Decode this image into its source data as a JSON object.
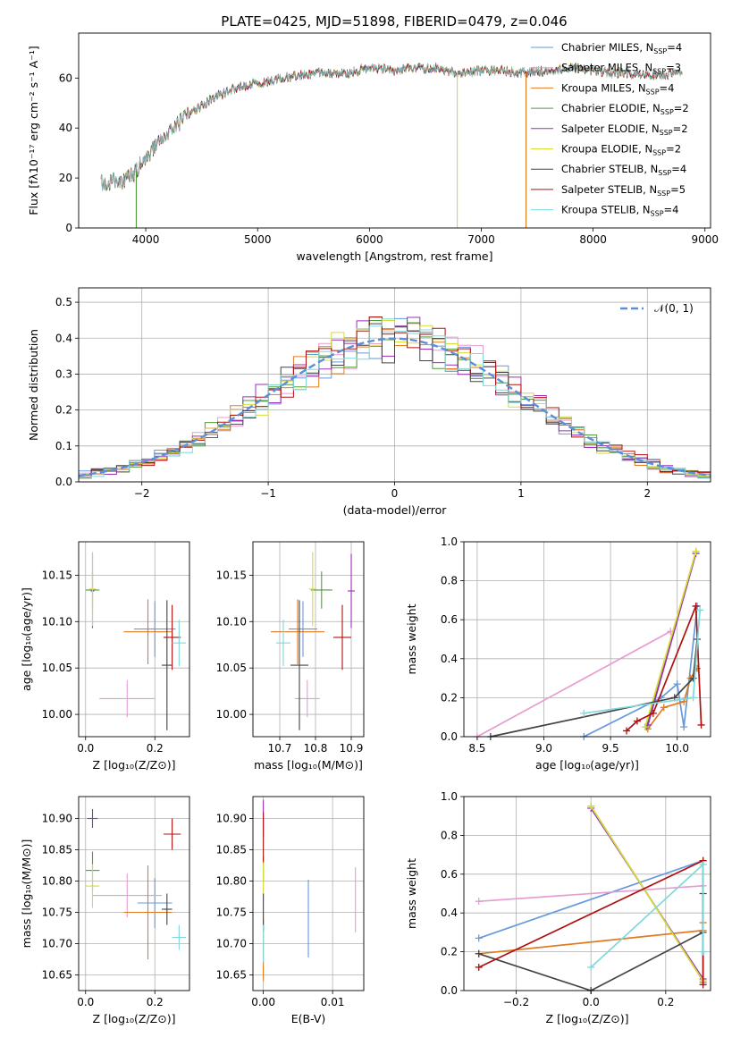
{
  "title": "PLATE=0425, MJD=51898, FIBERID=0479, z=0.046",
  "colors": {
    "chabrier_miles": "#6699dd",
    "salpeter_miles": "#e69cd0",
    "kroupa_miles": "#e07b1f",
    "chabrier_elodie": "#4d9e3a",
    "salpeter_elodie": "#9b30b6",
    "kroupa_elodie": "#d6dc38",
    "chabrier_stelib": "#444444",
    "salpeter_stelib": "#b01010",
    "kroupa_stelib": "#7fd8dc",
    "normal": "#5b8fd9"
  },
  "chart_data": [
    {
      "id": "spectrum",
      "type": "line",
      "xlabel": "wavelength [Angstrom, rest frame]",
      "ylabel": "Flux [fλ10⁻¹⁷ erg cm⁻² s⁻¹ A⁻¹]",
      "xlim": [
        3400,
        9050
      ],
      "ylim": [
        0,
        78
      ],
      "xticks": [
        4000,
        5000,
        6000,
        7000,
        8000,
        9000
      ],
      "yticks": [
        0,
        20,
        40,
        60
      ],
      "grid": false,
      "legend_position": "top-right",
      "legend": [
        {
          "key": "chabrier_miles",
          "label": "Chabrier MILES, N",
          "sub": "SSP",
          "eq": "=4"
        },
        {
          "key": "salpeter_miles",
          "label": "Salpeter MILES, N",
          "sub": "SSP",
          "eq": "=3"
        },
        {
          "key": "kroupa_miles",
          "label": "Kroupa MILES, N",
          "sub": "SSP",
          "eq": "=4"
        },
        {
          "key": "chabrier_elodie",
          "label": "Chabrier ELODIE, N",
          "sub": "SSP",
          "eq": "=2"
        },
        {
          "key": "salpeter_elodie",
          "label": "Salpeter ELODIE, N",
          "sub": "SSP",
          "eq": "=2"
        },
        {
          "key": "kroupa_elodie",
          "label": "Kroupa ELODIE, N",
          "sub": "SSP",
          "eq": "=2"
        },
        {
          "key": "chabrier_stelib",
          "label": "Chabrier STELIB, N",
          "sub": "SSP",
          "eq": "=4"
        },
        {
          "key": "salpeter_stelib",
          "label": "Salpeter STELIB, N",
          "sub": "SSP",
          "eq": "=5"
        },
        {
          "key": "kroupa_stelib",
          "label": "Kroupa STELIB, N",
          "sub": "SSP",
          "eq": "=4"
        }
      ],
      "continuum": [
        [
          3600,
          18
        ],
        [
          3800,
          19
        ],
        [
          3900,
          22
        ],
        [
          4000,
          28
        ],
        [
          4200,
          38
        ],
        [
          4400,
          46
        ],
        [
          4600,
          52
        ],
        [
          4800,
          56
        ],
        [
          5000,
          58
        ],
        [
          5200,
          60
        ],
        [
          5400,
          61
        ],
        [
          5600,
          62
        ],
        [
          5800,
          62
        ],
        [
          6000,
          64
        ],
        [
          6200,
          63
        ],
        [
          6400,
          64
        ],
        [
          6600,
          64
        ],
        [
          6800,
          62
        ],
        [
          7000,
          63
        ],
        [
          7200,
          63
        ],
        [
          7400,
          62
        ],
        [
          7600,
          63
        ],
        [
          7800,
          64
        ],
        [
          8000,
          63
        ],
        [
          8200,
          62
        ],
        [
          8400,
          62
        ],
        [
          8600,
          61
        ],
        [
          8800,
          62
        ]
      ],
      "drop_lines": [
        {
          "x": 3915,
          "color_key": "chabrier_elodie"
        },
        {
          "x": 6785,
          "color_key": "kroupa_elodie"
        },
        {
          "x": 7400,
          "color_key": "kroupa_miles"
        }
      ]
    },
    {
      "id": "residuals",
      "type": "step",
      "xlabel": "(data-model)/error",
      "ylabel": "Normed distribution",
      "xlim": [
        -2.5,
        2.5
      ],
      "ylim": [
        0,
        0.54
      ],
      "xticks": [
        -2,
        -1,
        0,
        1,
        2
      ],
      "yticks": [
        0.0,
        0.1,
        0.2,
        0.3,
        0.4,
        0.5
      ],
      "grid": true,
      "legend_position": "top-right",
      "legend_label": "𝒩(0, 1)",
      "bin_width": 0.1
    },
    {
      "id": "age_vs_Z",
      "type": "errorbar",
      "xlabel": "Z [log₁₀(Z/Z⊙)]",
      "ylabel": "age  [log₁₀(age/yr)]",
      "xlim": [
        -0.02,
        0.3
      ],
      "ylim": [
        9.976,
        10.186
      ],
      "xticks": [
        0.0,
        0.2
      ],
      "yticks": [
        10.0,
        10.05,
        10.1,
        10.15
      ],
      "points": [
        {
          "key": "chabrier_miles",
          "x": 0.2,
          "xerr": 0.06,
          "y": 10.092,
          "yerr": 0.03
        },
        {
          "key": "salpeter_miles",
          "x": 0.12,
          "xerr": 0.08,
          "y": 10.017,
          "yerr": 0.02
        },
        {
          "key": "kroupa_miles",
          "x": 0.18,
          "xerr": 0.07,
          "y": 10.089,
          "yerr": 0.035
        },
        {
          "key": "chabrier_elodie",
          "x": 0.02,
          "xerr": 0.02,
          "y": 10.134,
          "yerr": 0.02
        },
        {
          "key": "salpeter_elodie",
          "x": 0.02,
          "xerr": 0.005,
          "y": 10.133,
          "yerr": 0.04
        },
        {
          "key": "kroupa_elodie",
          "x": 0.02,
          "xerr": 0.01,
          "y": 10.135,
          "yerr": 0.04
        },
        {
          "key": "chabrier_stelib",
          "x": 0.235,
          "xerr": 0.015,
          "y": 10.053,
          "yerr": 0.07
        },
        {
          "key": "salpeter_stelib",
          "x": 0.25,
          "xerr": 0.025,
          "y": 10.083,
          "yerr": 0.035
        },
        {
          "key": "kroupa_stelib",
          "x": 0.27,
          "xerr": 0.02,
          "y": 10.077,
          "yerr": 0.025
        }
      ]
    },
    {
      "id": "age_vs_mass",
      "type": "errorbar",
      "xlabel": "mass [log₁₀(M/M⊙)]",
      "ylabel": "",
      "xlim": [
        10.625,
        10.935
      ],
      "ylim": [
        9.976,
        10.186
      ],
      "xticks": [
        10.7,
        10.8,
        10.9
      ],
      "yticks": [
        10.0,
        10.05,
        10.1,
        10.15
      ],
      "points": [
        {
          "key": "chabrier_miles",
          "x": 10.765,
          "xerr": 0.04,
          "y": 10.092,
          "yerr": 0.03
        },
        {
          "key": "salpeter_miles",
          "x": 10.777,
          "xerr": 0.035,
          "y": 10.017,
          "yerr": 0.02
        },
        {
          "key": "kroupa_miles",
          "x": 10.75,
          "xerr": 0.075,
          "y": 10.089,
          "yerr": 0.035
        },
        {
          "key": "chabrier_elodie",
          "x": 10.817,
          "xerr": 0.03,
          "y": 10.134,
          "yerr": 0.02
        },
        {
          "key": "salpeter_elodie",
          "x": 10.9,
          "xerr": 0.01,
          "y": 10.133,
          "yerr": 0.04
        },
        {
          "key": "kroupa_elodie",
          "x": 10.792,
          "xerr": 0.01,
          "y": 10.135,
          "yerr": 0.04
        },
        {
          "key": "chabrier_stelib",
          "x": 10.755,
          "xerr": 0.025,
          "y": 10.053,
          "yerr": 0.07
        },
        {
          "key": "salpeter_stelib",
          "x": 10.875,
          "xerr": 0.025,
          "y": 10.083,
          "yerr": 0.035
        },
        {
          "key": "kroupa_stelib",
          "x": 10.71,
          "xerr": 0.02,
          "y": 10.077,
          "yerr": 0.025
        }
      ]
    },
    {
      "id": "massweight_vs_age",
      "type": "line",
      "xlabel": "age  [log₁₀(age/yr)]",
      "ylabel": "mass weight",
      "xlim": [
        8.4,
        10.25
      ],
      "ylim": [
        0,
        1
      ],
      "xticks": [
        8.5,
        9.0,
        9.5,
        10.0
      ],
      "yticks": [
        0.0,
        0.2,
        0.4,
        0.6,
        0.8,
        1.0
      ],
      "grid": true,
      "series": [
        {
          "key": "chabrier_miles",
          "x": [
            9.3,
            9.88,
            10.0,
            10.05,
            10.15
          ],
          "y": [
            0.0,
            0.2,
            0.27,
            0.05,
            0.67
          ]
        },
        {
          "key": "salpeter_miles",
          "x": [
            8.5,
            9.95
          ],
          "y": [
            0.0,
            0.54
          ]
        },
        {
          "key": "kroupa_miles",
          "x": [
            9.78,
            9.9,
            10.05,
            10.1,
            10.15
          ],
          "y": [
            0.04,
            0.15,
            0.18,
            0.3,
            0.35
          ]
        },
        {
          "key": "chabrier_elodie",
          "x": [
            9.77,
            10.14
          ],
          "y": [
            0.05,
            0.95
          ]
        },
        {
          "key": "salpeter_elodie",
          "x": [
            9.78,
            10.14
          ],
          "y": [
            0.06,
            0.94
          ]
        },
        {
          "key": "kroupa_elodie",
          "x": [
            9.76,
            10.14
          ],
          "y": [
            0.05,
            0.95
          ]
        },
        {
          "key": "chabrier_stelib",
          "x": [
            8.6,
            9.98,
            10.12,
            10.15
          ],
          "y": [
            0.0,
            0.2,
            0.3,
            0.5
          ]
        },
        {
          "key": "salpeter_stelib",
          "x": [
            9.62,
            9.7,
            9.82,
            10.14,
            10.18
          ],
          "y": [
            0.03,
            0.08,
            0.12,
            0.67,
            0.06
          ]
        },
        {
          "key": "kroupa_stelib",
          "x": [
            9.3,
            10.12,
            10.17
          ],
          "y": [
            0.12,
            0.2,
            0.65
          ]
        }
      ]
    },
    {
      "id": "mass_vs_Z",
      "type": "errorbar",
      "xlabel": "Z [log₁₀(Z/Z⊙)]",
      "ylabel": "mass [log₁₀(M/M⊙)]",
      "xlim": [
        -0.02,
        0.3
      ],
      "ylim": [
        10.625,
        10.935
      ],
      "xticks": [
        0.0,
        0.2
      ],
      "yticks": [
        10.65,
        10.7,
        10.75,
        10.8,
        10.85,
        10.9
      ],
      "points": [
        {
          "key": "chabrier_miles",
          "x": 0.2,
          "xerr": 0.05,
          "y": 10.765,
          "yerr": 0.04
        },
        {
          "key": "salpeter_miles",
          "x": 0.12,
          "xerr": 0.1,
          "y": 10.777,
          "yerr": 0.035
        },
        {
          "key": "kroupa_miles",
          "x": 0.18,
          "xerr": 0.07,
          "y": 10.75,
          "yerr": 0.075
        },
        {
          "key": "chabrier_elodie",
          "x": 0.02,
          "xerr": 0.02,
          "y": 10.817,
          "yerr": 0.03
        },
        {
          "key": "salpeter_elodie",
          "x": 0.02,
          "xerr": 0.015,
          "y": 10.9,
          "yerr": 0.015
        },
        {
          "key": "kroupa_elodie",
          "x": 0.02,
          "xerr": 0.02,
          "y": 10.792,
          "yerr": 0.035
        },
        {
          "key": "chabrier_stelib",
          "x": 0.235,
          "xerr": 0.015,
          "y": 10.755,
          "yerr": 0.025
        },
        {
          "key": "salpeter_stelib",
          "x": 0.25,
          "xerr": 0.025,
          "y": 10.875,
          "yerr": 0.025
        },
        {
          "key": "kroupa_stelib",
          "x": 0.27,
          "xerr": 0.02,
          "y": 10.71,
          "yerr": 0.02
        }
      ]
    },
    {
      "id": "mass_vs_ebv",
      "type": "errorbar",
      "xlabel": "E(B-V)",
      "ylabel": "",
      "xlim": [
        -0.0015,
        0.0145
      ],
      "ylim": [
        10.625,
        10.935
      ],
      "xticks": [
        0.0,
        0.01
      ],
      "yticks": [
        10.65,
        10.7,
        10.75,
        10.8,
        10.85,
        10.9
      ],
      "points": [
        {
          "key": "chabrier_miles",
          "x": 0.0065,
          "xerr": 0,
          "y": 10.74,
          "yerr": 0.062
        },
        {
          "key": "salpeter_miles",
          "x": 0.0133,
          "xerr": 0,
          "y": 10.77,
          "yerr": 0.052
        },
        {
          "key": "kroupa_miles",
          "x": 0.0,
          "xerr": 0,
          "y": 10.69,
          "yerr": 0.05
        },
        {
          "key": "chabrier_elodie",
          "x": 0.0,
          "xerr": 0,
          "y": 10.82,
          "yerr": 0.02
        },
        {
          "key": "salpeter_elodie",
          "x": 0.0,
          "xerr": 0,
          "y": 10.9,
          "yerr": 0.03
        },
        {
          "key": "kroupa_elodie",
          "x": 0.0,
          "xerr": 0,
          "y": 10.8,
          "yerr": 0.03
        },
        {
          "key": "chabrier_stelib",
          "x": 0.0,
          "xerr": 0,
          "y": 10.75,
          "yerr": 0.03
        },
        {
          "key": "salpeter_stelib",
          "x": 0.0,
          "xerr": 0,
          "y": 10.87,
          "yerr": 0.04
        },
        {
          "key": "kroupa_stelib",
          "x": 0.0,
          "xerr": 0,
          "y": 10.7,
          "yerr": 0.03
        }
      ]
    },
    {
      "id": "massweight_vs_Z",
      "type": "line",
      "xlabel": "Z [log₁₀(Z/Z⊙)]",
      "ylabel": "mass weight",
      "xlim": [
        -0.34,
        0.32
      ],
      "ylim": [
        0,
        1
      ],
      "xticks": [
        -0.2,
        0.0,
        0.2
      ],
      "yticks": [
        0.0,
        0.2,
        0.4,
        0.6,
        0.8,
        1.0
      ],
      "grid": true,
      "series": [
        {
          "key": "chabrier_miles",
          "x": [
            -0.3,
            0.3
          ],
          "y": [
            0.27,
            0.67
          ]
        },
        {
          "key": "salpeter_miles",
          "x": [
            -0.3,
            0.3
          ],
          "y": [
            0.46,
            0.54
          ]
        },
        {
          "key": "kroupa_miles",
          "x": [
            -0.3,
            0.3,
            0.3,
            0.3
          ],
          "y": [
            0.19,
            0.31,
            0.35,
            0.04
          ]
        },
        {
          "key": "chabrier_elodie",
          "x": [
            0.0,
            0.3
          ],
          "y": [
            0.95,
            0.05
          ]
        },
        {
          "key": "salpeter_elodie",
          "x": [
            0.0,
            0.3
          ],
          "y": [
            0.94,
            0.06
          ]
        },
        {
          "key": "kroupa_elodie",
          "x": [
            0.0,
            0.3
          ],
          "y": [
            0.95,
            0.05
          ]
        },
        {
          "key": "chabrier_stelib",
          "x": [
            -0.3,
            0.0,
            0.3,
            0.3
          ],
          "y": [
            0.19,
            0.0,
            0.3,
            0.5
          ]
        },
        {
          "key": "salpeter_stelib",
          "x": [
            -0.3,
            0.3,
            0.3
          ],
          "y": [
            0.12,
            0.67,
            0.03
          ]
        },
        {
          "key": "kroupa_stelib",
          "x": [
            0.0,
            0.3,
            0.3
          ],
          "y": [
            0.12,
            0.65,
            0.2
          ]
        }
      ]
    }
  ]
}
